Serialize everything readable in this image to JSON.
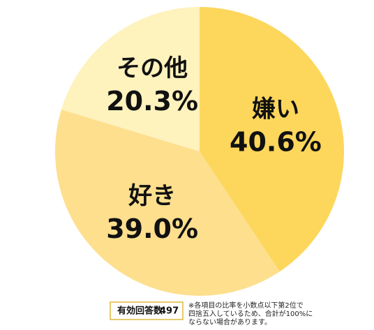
{
  "chart_data": {
    "type": "pie",
    "categories": [
      "嫌い",
      "好き",
      "その他"
    ],
    "values": [
      40.6,
      39.0,
      20.3
    ],
    "value_labels": [
      "40.6%",
      "39.0%",
      "20.3%"
    ],
    "colors": [
      "#fdd65c",
      "#fddf8e",
      "#fef2bd"
    ]
  },
  "footer": {
    "respondents_label": "有効回答数",
    "respondents": 497,
    "note": [
      "※各項目の比率を小数点以下第2位で",
      "四捨五入しているため、合計が100%に",
      "ならない場合があります。"
    ]
  }
}
